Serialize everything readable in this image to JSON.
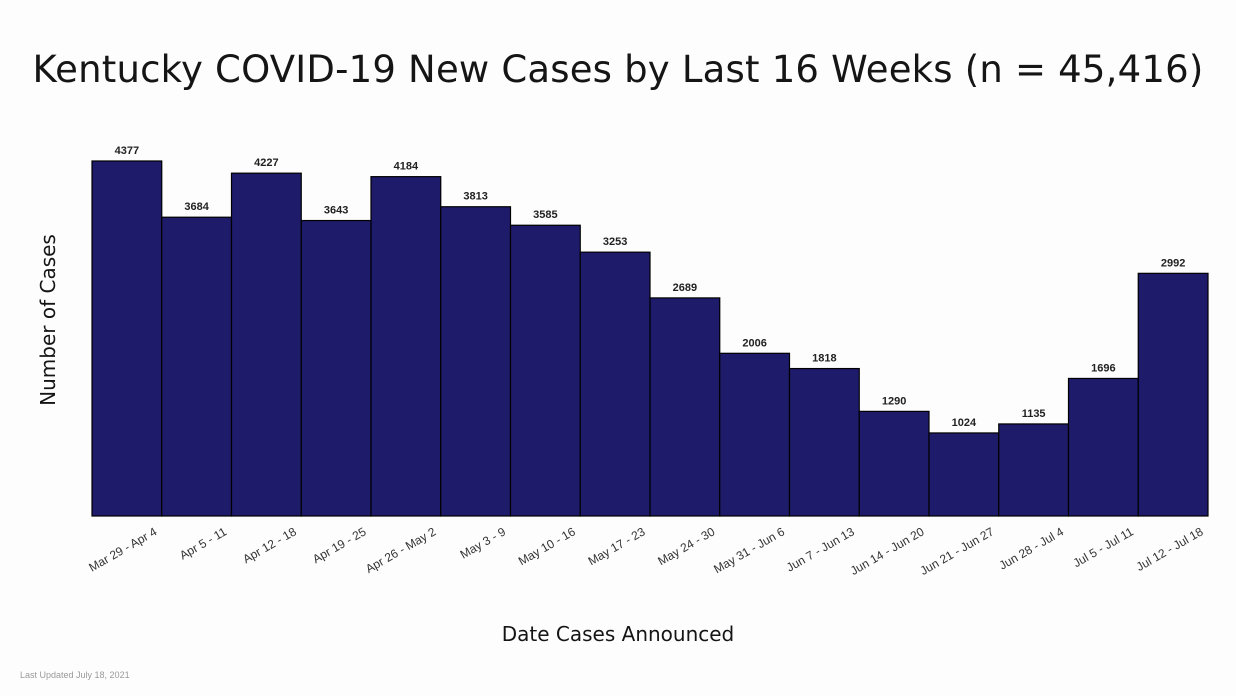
{
  "chart_data": {
    "type": "bar",
    "title": "Kentucky COVID-19 New Cases by Last 16 Weeks (n = 45,416)",
    "xlabel": "Date Cases Announced",
    "ylabel": "Number of Cases",
    "categories": [
      "Mar 29 - Apr 4",
      "Apr 5 - 11",
      "Apr 12 - 18",
      "Apr 19 - 25",
      "Apr 26 - May 2",
      "May 3 - 9",
      "May 10 - 16",
      "May 17 - 23",
      "May 24 - 30",
      "May 31 - Jun 6",
      "Jun 7 - Jun 13",
      "Jun 14 - Jun 20",
      "Jun 21 - Jun 27",
      "Jun 28 - Jul 4",
      "Jul 5 - Jul 11",
      "Jul 12 - Jul 18"
    ],
    "values": [
      4377,
      3684,
      4227,
      3643,
      4184,
      3813,
      3585,
      3253,
      2689,
      2006,
      1818,
      1290,
      1024,
      1135,
      1696,
      2992
    ],
    "ylim": [
      0,
      4377
    ],
    "grid": false,
    "bar_color": "#1e1b6b"
  },
  "footnote": "Last Updated July 18, 2021"
}
